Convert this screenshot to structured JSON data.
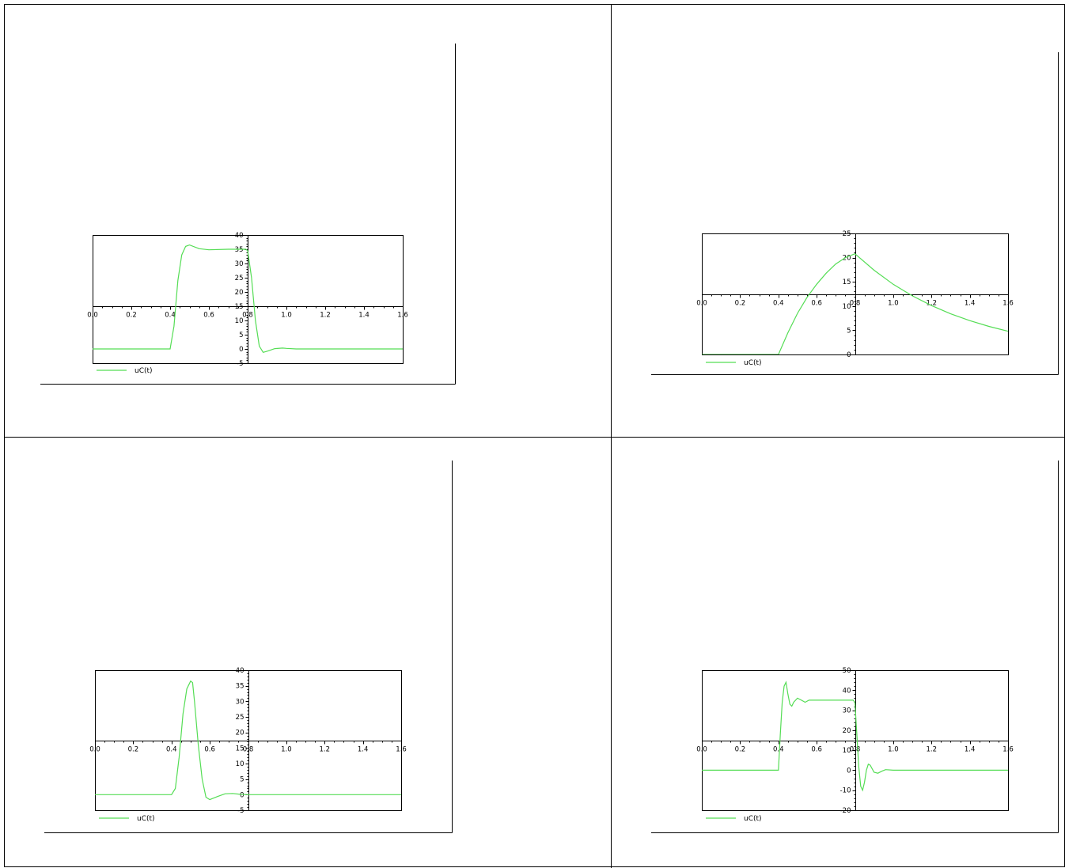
{
  "chart_data": [
    {
      "type": "line",
      "legend": "uC(t)",
      "xlim": [
        0,
        1.6
      ],
      "ylim": [
        -5,
        40
      ],
      "x_ticks": [
        "0.0",
        "0.2",
        "0.4",
        "0.6",
        "0.8",
        "1.0",
        "1.2",
        "1.4",
        "1.6"
      ],
      "y_ticks": [
        "-5",
        "0",
        "5",
        "10",
        "15",
        "20",
        "25",
        "30",
        "35",
        "40"
      ],
      "series": [
        {
          "name": "uC(t)",
          "x": [
            0,
            0.4,
            0.42,
            0.44,
            0.46,
            0.48,
            0.5,
            0.55,
            0.6,
            0.7,
            0.79,
            0.8,
            0.82,
            0.84,
            0.86,
            0.88,
            0.9,
            0.94,
            0.98,
            1.0,
            1.05,
            1.1,
            1.6
          ],
          "y": [
            0,
            0,
            8,
            24,
            33,
            36,
            36.5,
            35.2,
            34.8,
            35.0,
            35.0,
            34.5,
            25,
            10,
            1,
            -1.2,
            -0.8,
            0.1,
            0.3,
            0.2,
            0,
            0,
            0
          ]
        }
      ]
    },
    {
      "type": "line",
      "legend": "uC(t)",
      "xlim": [
        0,
        1.6
      ],
      "ylim": [
        0,
        25
      ],
      "x_ticks": [
        "0.0",
        "0.2",
        "0.4",
        "0.6",
        "0.8",
        "1.0",
        "1.2",
        "1.4",
        "1.6"
      ],
      "y_ticks": [
        "0",
        "5",
        "10",
        "15",
        "20",
        "25"
      ],
      "series": [
        {
          "name": "uC(t)",
          "x": [
            0,
            0.4,
            0.45,
            0.5,
            0.55,
            0.6,
            0.65,
            0.7,
            0.75,
            0.8,
            0.9,
            1.0,
            1.1,
            1.2,
            1.3,
            1.4,
            1.5,
            1.6
          ],
          "y": [
            0,
            0,
            4.5,
            8.5,
            11.8,
            14.5,
            16.8,
            18.7,
            20.0,
            20.8,
            17.4,
            14.5,
            12.1,
            10.1,
            8.4,
            7.0,
            5.8,
            4.8
          ]
        }
      ]
    },
    {
      "type": "line",
      "legend": "uC(t)",
      "xlim": [
        0,
        1.6
      ],
      "ylim": [
        -5,
        40
      ],
      "x_ticks": [
        "0.0",
        "0.2",
        "0.4",
        "0.6",
        "0.8",
        "1.0",
        "1.2",
        "1.4",
        "1.6"
      ],
      "y_ticks": [
        "-5",
        "0",
        "5",
        "10",
        "15",
        "20",
        "25",
        "30",
        "35",
        "40"
      ],
      "series": [
        {
          "name": "uC(t)",
          "x": [
            0,
            0.4,
            0.42,
            0.44,
            0.46,
            0.48,
            0.5,
            0.51,
            0.52,
            0.54,
            0.56,
            0.58,
            0.6,
            0.64,
            0.68,
            0.72,
            0.76,
            0.8,
            1.6
          ],
          "y": [
            0,
            0,
            2,
            12,
            26,
            34,
            36.5,
            36,
            30,
            16,
            5,
            -0.8,
            -1.6,
            -0.6,
            0.3,
            0.4,
            0.1,
            0,
            0
          ]
        }
      ]
    },
    {
      "type": "line",
      "legend": "uC(t)",
      "xlim": [
        0,
        1.6
      ],
      "ylim": [
        -20,
        50
      ],
      "x_ticks": [
        "0.0",
        "0.2",
        "0.4",
        "0.6",
        "0.8",
        "1.0",
        "1.2",
        "1.4",
        "1.6"
      ],
      "y_ticks": [
        "-20",
        "-10",
        "0",
        "10",
        "20",
        "30",
        "40",
        "50"
      ],
      "series": [
        {
          "name": "uC(t)",
          "x": [
            0,
            0.4,
            0.41,
            0.42,
            0.43,
            0.44,
            0.45,
            0.46,
            0.47,
            0.48,
            0.5,
            0.52,
            0.54,
            0.56,
            0.6,
            0.79,
            0.8,
            0.81,
            0.82,
            0.83,
            0.84,
            0.85,
            0.86,
            0.87,
            0.88,
            0.9,
            0.92,
            0.94,
            0.96,
            1.0,
            1.6
          ],
          "y": [
            0,
            0,
            18,
            34,
            42,
            44,
            38,
            33,
            32,
            34,
            36,
            35,
            34,
            35,
            35,
            35,
            34,
            18,
            2,
            -8,
            -10,
            -6,
            0,
            3,
            2.5,
            -1,
            -1.5,
            -0.5,
            0.3,
            0,
            0
          ]
        }
      ]
    }
  ]
}
